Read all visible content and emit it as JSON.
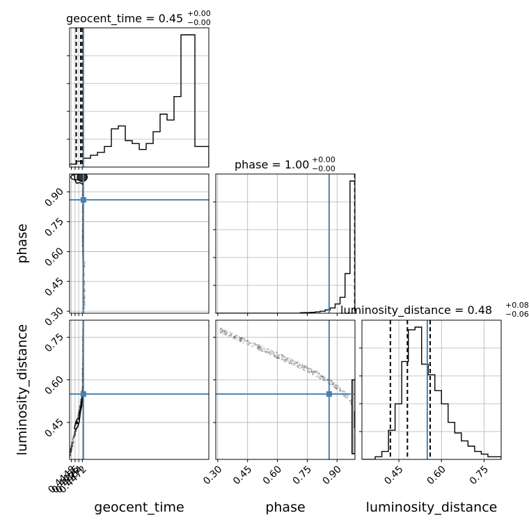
{
  "chart_data": {
    "type": "corner",
    "parameters": [
      "geocent_time",
      "phase",
      "luminosity_distance"
    ],
    "axis_labels": {
      "x": [
        "geocent_time",
        "phase",
        "luminosity_distance"
      ],
      "y": [
        "phase",
        "luminosity_distance"
      ]
    },
    "titles": [
      {
        "param": "geocent_time",
        "prefix": "geocent_time = ",
        "median": "0.45",
        "upper": "+0.00",
        "lower": "−0.00"
      },
      {
        "param": "phase",
        "prefix": "phase = ",
        "median": "1.00",
        "upper": "+0.00",
        "lower": "−0.00"
      },
      {
        "param": "luminosity_distance",
        "prefix": "luminosity_distance = ",
        "median": "0.48",
        "upper": "+0.08",
        "lower": "−0.06"
      }
    ],
    "ranges": {
      "geocent_time": [
        0.4444,
        0.475
      ],
      "phase": [
        0.29,
        0.99
      ],
      "luminosity_distance": [
        0.32,
        0.81
      ]
    },
    "ticks": {
      "geocent_time": [
        "0.4448",
        "0.4456",
        "0.4464",
        "0.4472"
      ],
      "phase": [
        "0.30",
        "0.45",
        "0.60",
        "0.75",
        "0.90"
      ],
      "luminosity_distance": [
        "0.45",
        "0.60",
        "0.75"
      ]
    },
    "ylabel_ticks": {
      "phase": [
        "0.30",
        "0.45",
        "0.60",
        "0.75",
        "0.90"
      ],
      "luminosity_distance": [
        "0.45",
        "0.60",
        "0.75"
      ]
    },
    "truths": {
      "geocent_time": 0.44743,
      "phase": 0.86,
      "luminosity_distance": 0.55
    },
    "quantiles": {
      "geocent_time": [
        0.44586,
        0.44686,
        0.44721
      ],
      "phase": [
        0.989
      ],
      "luminosity_distance": [
        0.42,
        0.48,
        0.56
      ]
    },
    "histograms": {
      "geocent_time": [
        1,
        2,
        3,
        4,
        5,
        7,
        13,
        14,
        9,
        8,
        6,
        8,
        12,
        18,
        16,
        24,
        45,
        45,
        7,
        7
      ],
      "phase": [
        0,
        0,
        0,
        0,
        0,
        0,
        0,
        0,
        0,
        0,
        0,
        0,
        0,
        0,
        0,
        0,
        0,
        0.4,
        0.5,
        0.7,
        1,
        1.5,
        2.5,
        4,
        7,
        12,
        30,
        100
      ],
      "luminosity_distance": [
        0,
        0,
        1,
        3,
        11,
        21,
        37,
        49,
        50,
        36,
        32,
        26,
        21,
        14,
        10,
        7,
        5,
        3,
        2,
        1,
        1
      ]
    },
    "grid": true
  }
}
